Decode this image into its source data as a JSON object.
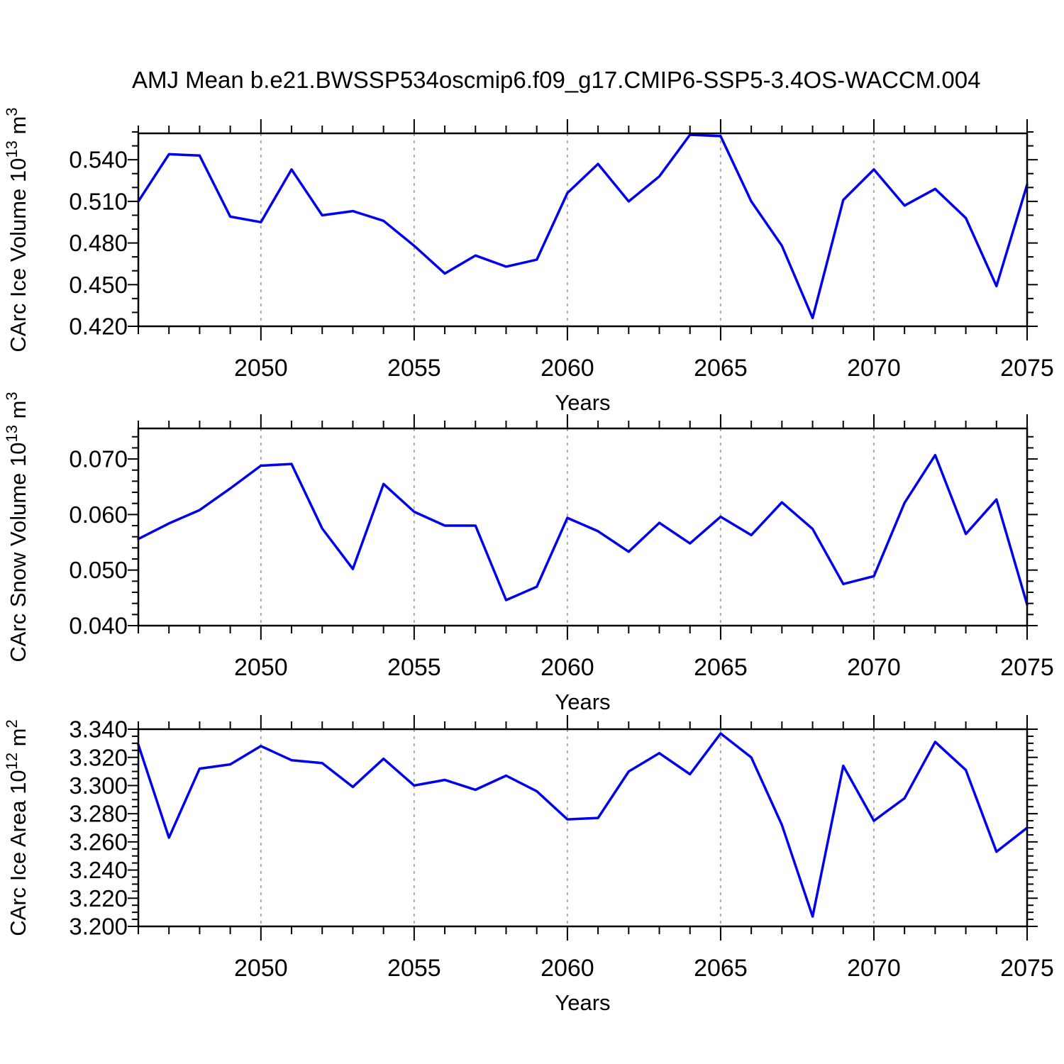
{
  "title": "AMJ Mean b.e21.BWSSP534oscmip6.f09_g17.CMIP6-SSP5-3.4OS-WACCM.004",
  "colors": {
    "line": "#0000ee",
    "grid": "#9c9c9c",
    "axis": "#000000",
    "background": "#ffffff",
    "text": "#000000"
  },
  "x_axis": {
    "label": "Years",
    "min": 2046,
    "max": 2075,
    "major_ticks": [
      2050,
      2055,
      2060,
      2065,
      2070,
      2075
    ],
    "minor_step": 1,
    "gridlines": [
      2050,
      2055,
      2060,
      2065,
      2070
    ]
  },
  "chart_data": [
    {
      "type": "line",
      "id": "ice-volume",
      "ylabel_text": "CArc Ice Volume 10^13 m^3",
      "ylabel_parts": [
        {
          "t": "CArc Ice Volume 10"
        },
        {
          "t": "13",
          "sup": true
        },
        {
          "t": " m"
        },
        {
          "t": "3",
          "sup": true
        }
      ],
      "xlabel": "Years",
      "ylim": [
        0.42,
        0.559
      ],
      "ytick_major": [
        0.42,
        0.45,
        0.48,
        0.51,
        0.54
      ],
      "ytick_minor_step": 0.01,
      "decimals": 3,
      "grid": "vertical-dashed",
      "legend": "none",
      "x": [
        2046,
        2047,
        2048,
        2049,
        2050,
        2051,
        2052,
        2053,
        2054,
        2055,
        2056,
        2057,
        2058,
        2059,
        2060,
        2061,
        2062,
        2063,
        2064,
        2065,
        2066,
        2067,
        2068,
        2069,
        2070,
        2071,
        2072,
        2073,
        2074,
        2075
      ],
      "values": [
        0.51,
        0.544,
        0.543,
        0.499,
        0.495,
        0.533,
        0.5,
        0.503,
        0.496,
        0.478,
        0.458,
        0.471,
        0.463,
        0.468,
        0.516,
        0.537,
        0.51,
        0.528,
        0.558,
        0.557,
        0.51,
        0.478,
        0.426,
        0.511,
        0.533,
        0.507,
        0.519,
        0.498,
        0.449,
        0.522
      ]
    },
    {
      "type": "line",
      "id": "snow-volume",
      "ylabel_text": "CArc Snow Volume 10^13 m^3",
      "ylabel_parts": [
        {
          "t": "CArc Snow Volume 10"
        },
        {
          "t": "13",
          "sup": true
        },
        {
          "t": " m"
        },
        {
          "t": "3",
          "sup": true
        }
      ],
      "xlabel": "Years",
      "ylim": [
        0.04,
        0.0755
      ],
      "ytick_major": [
        0.04,
        0.05,
        0.06,
        0.07
      ],
      "ytick_minor_step": 0.002,
      "decimals": 3,
      "grid": "vertical-dashed",
      "legend": "none",
      "x": [
        2046,
        2047,
        2048,
        2049,
        2050,
        2051,
        2052,
        2053,
        2054,
        2055,
        2056,
        2057,
        2058,
        2059,
        2060,
        2061,
        2062,
        2063,
        2064,
        2065,
        2066,
        2067,
        2068,
        2069,
        2070,
        2071,
        2072,
        2073,
        2074,
        2075
      ],
      "values": [
        0.0556,
        0.0584,
        0.0608,
        0.0647,
        0.0688,
        0.0691,
        0.0575,
        0.0502,
        0.0655,
        0.0605,
        0.058,
        0.058,
        0.0446,
        0.047,
        0.0594,
        0.057,
        0.0533,
        0.0585,
        0.0548,
        0.0596,
        0.0563,
        0.0622,
        0.0574,
        0.0475,
        0.0489,
        0.0621,
        0.0707,
        0.0565,
        0.0627,
        0.0438
      ]
    },
    {
      "type": "line",
      "id": "ice-area",
      "ylabel_text": "CArc Ice Area 10^12 m^2",
      "ylabel_parts": [
        {
          "t": "CArc Ice Area 10"
        },
        {
          "t": "12",
          "sup": true
        },
        {
          "t": " m"
        },
        {
          "t": "2",
          "sup": true
        }
      ],
      "xlabel": "Years",
      "ylim": [
        3.2,
        3.34
      ],
      "ytick_major": [
        3.2,
        3.22,
        3.24,
        3.26,
        3.28,
        3.3,
        3.32,
        3.34
      ],
      "ytick_minor_step": 0.005,
      "decimals": 3,
      "grid": "vertical-dashed",
      "legend": "none",
      "x": [
        2046,
        2047,
        2048,
        2049,
        2050,
        2051,
        2052,
        2053,
        2054,
        2055,
        2056,
        2057,
        2058,
        2059,
        2060,
        2061,
        2062,
        2063,
        2064,
        2065,
        2066,
        2067,
        2068,
        2069,
        2070,
        2071,
        2072,
        2073,
        2074,
        2075
      ],
      "values": [
        3.329,
        3.263,
        3.312,
        3.315,
        3.328,
        3.318,
        3.316,
        3.299,
        3.319,
        3.3,
        3.304,
        3.297,
        3.307,
        3.296,
        3.276,
        3.277,
        3.31,
        3.323,
        3.308,
        3.337,
        3.32,
        3.272,
        3.207,
        3.314,
        3.275,
        3.291,
        3.331,
        3.311,
        3.253,
        3.27
      ]
    }
  ]
}
